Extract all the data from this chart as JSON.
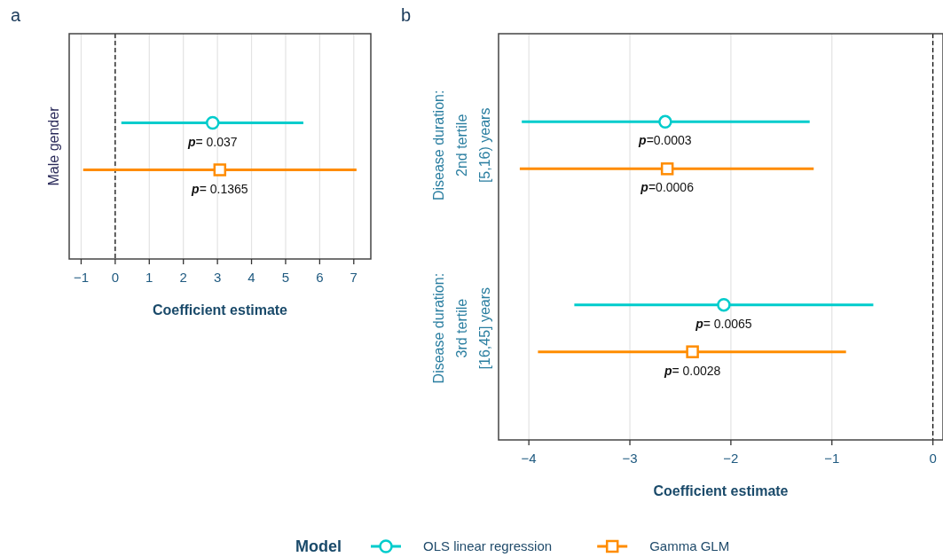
{
  "chart_data": [
    {
      "type": "scatter",
      "title": "a",
      "orientation": "horizontal",
      "categories": [
        "Male gender"
      ],
      "xlabel": "Coefficient estimate",
      "xlim": [
        -1.35,
        7.5
      ],
      "xticks": [
        {
          "value": -1,
          "label": "−1"
        },
        0,
        1,
        2,
        3,
        4,
        5,
        6,
        7
      ],
      "grid": "x",
      "ref_lines": [
        {
          "axis": "x",
          "value": 0,
          "label": null,
          "color": "#000000",
          "line_style": "dashed"
        }
      ],
      "annotations": [
        "p= 0.037",
        "p= 0.1365"
      ],
      "series": [
        {
          "color": "#00cccc",
          "marker": "circle",
          "values": [
            2.86
          ],
          "errors": [
            [
              0.18,
              5.52
            ]
          ]
        },
        {
          "color": "#ff8c00",
          "marker": "square",
          "values": [
            3.07
          ],
          "errors": [
            [
              -0.94,
              7.08
            ]
          ]
        }
      ]
    },
    {
      "type": "scatter",
      "title": "b",
      "orientation": "horizontal",
      "categories": [
        "Disease duration:\n2nd tertile\n[5,16) years",
        "Disease duration:\n3rd tertile\n[16,45] years"
      ],
      "xlabel": "Coefficient estimate",
      "xlim": [
        -4.3,
        0.1
      ],
      "xticks": [
        {
          "value": -4,
          "label": "−4"
        },
        {
          "value": -3,
          "label": "−3"
        },
        {
          "value": -2,
          "label": "−2"
        },
        {
          "value": -1,
          "label": "−1"
        },
        0
      ],
      "grid": "x",
      "legend": "bottom",
      "legend_title": "Model",
      "ref_lines": [
        {
          "axis": "x",
          "value": 0,
          "label": null,
          "color": "#000000",
          "line_style": "dashed"
        }
      ],
      "annotations": [
        "p=0.0003",
        "p=0.0006",
        "p= 0.0065",
        "p= 0.0028"
      ],
      "series": [
        {
          "name": "OLS linear regression",
          "color": "#00cccc",
          "marker": "circle",
          "values": [
            -2.65,
            -2.07
          ],
          "errors": [
            [
              -4.07,
              -1.22
            ],
            [
              -3.55,
              -0.59
            ]
          ]
        },
        {
          "name": "Gamma GLM",
          "color": "#ff8c00",
          "marker": "square",
          "values": [
            -2.63,
            -2.38
          ],
          "errors": [
            [
              -4.09,
              -1.18
            ],
            [
              -3.91,
              -0.86
            ]
          ]
        }
      ]
    }
  ]
}
